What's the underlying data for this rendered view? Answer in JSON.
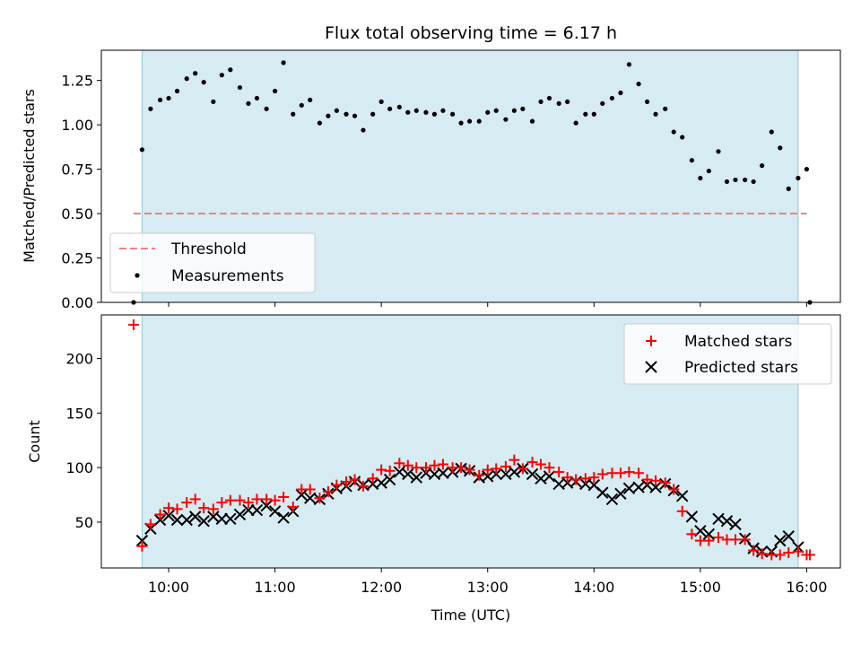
{
  "chart_data": [
    {
      "type": "scatter",
      "title": "Flux total observing time = 6.17 h",
      "ylabel": "Matched/Predicted stars",
      "ylim": [
        0,
        1.42
      ],
      "xlim_hours": [
        9.367,
        16.317
      ],
      "yticks": [
        0.0,
        0.25,
        0.5,
        0.75,
        1.0,
        1.25
      ],
      "ytick_labels": [
        "0.00",
        "0.25",
        "0.50",
        "0.75",
        "1.00",
        "1.25"
      ],
      "observing_window": [
        9.75,
        15.92
      ],
      "legend_position": "lower-left",
      "threshold": {
        "name": "Threshold",
        "value": 0.5,
        "x_range": [
          9.67,
          16.0
        ],
        "color": "#f08080"
      },
      "series": [
        {
          "name": "Measurements",
          "color": "#000000",
          "points": [
            [
              9.67,
              0.0
            ],
            [
              9.75,
              0.86
            ],
            [
              9.83,
              1.09
            ],
            [
              9.92,
              1.14
            ],
            [
              10.0,
              1.15
            ],
            [
              10.08,
              1.19
            ],
            [
              10.17,
              1.26
            ],
            [
              10.25,
              1.29
            ],
            [
              10.33,
              1.24
            ],
            [
              10.42,
              1.13
            ],
            [
              10.5,
              1.28
            ],
            [
              10.58,
              1.31
            ],
            [
              10.67,
              1.21
            ],
            [
              10.75,
              1.12
            ],
            [
              10.83,
              1.15
            ],
            [
              10.92,
              1.09
            ],
            [
              11.0,
              1.19
            ],
            [
              11.08,
              1.35
            ],
            [
              11.17,
              1.06
            ],
            [
              11.25,
              1.11
            ],
            [
              11.33,
              1.14
            ],
            [
              11.42,
              1.01
            ],
            [
              11.5,
              1.05
            ],
            [
              11.58,
              1.08
            ],
            [
              11.67,
              1.06
            ],
            [
              11.75,
              1.05
            ],
            [
              11.83,
              0.97
            ],
            [
              11.92,
              1.06
            ],
            [
              12.0,
              1.13
            ],
            [
              12.08,
              1.09
            ],
            [
              12.17,
              1.1
            ],
            [
              12.25,
              1.07
            ],
            [
              12.33,
              1.08
            ],
            [
              12.42,
              1.07
            ],
            [
              12.5,
              1.06
            ],
            [
              12.58,
              1.08
            ],
            [
              12.67,
              1.06
            ],
            [
              12.75,
              1.01
            ],
            [
              12.83,
              1.02
            ],
            [
              12.92,
              1.02
            ],
            [
              13.0,
              1.07
            ],
            [
              13.08,
              1.08
            ],
            [
              13.17,
              1.03
            ],
            [
              13.25,
              1.08
            ],
            [
              13.33,
              1.09
            ],
            [
              13.42,
              1.02
            ],
            [
              13.5,
              1.13
            ],
            [
              13.58,
              1.15
            ],
            [
              13.67,
              1.12
            ],
            [
              13.75,
              1.13
            ],
            [
              13.83,
              1.01
            ],
            [
              13.92,
              1.06
            ],
            [
              14.0,
              1.06
            ],
            [
              14.08,
              1.12
            ],
            [
              14.17,
              1.15
            ],
            [
              14.25,
              1.18
            ],
            [
              14.33,
              1.34
            ],
            [
              14.42,
              1.23
            ],
            [
              14.5,
              1.13
            ],
            [
              14.58,
              1.06
            ],
            [
              14.67,
              1.09
            ],
            [
              14.75,
              0.96
            ],
            [
              14.83,
              0.93
            ],
            [
              14.92,
              0.8
            ],
            [
              15.0,
              0.7
            ],
            [
              15.08,
              0.74
            ],
            [
              15.17,
              0.85
            ],
            [
              15.25,
              0.68
            ],
            [
              15.33,
              0.69
            ],
            [
              15.42,
              0.69
            ],
            [
              15.5,
              0.68
            ],
            [
              15.58,
              0.77
            ],
            [
              15.67,
              0.96
            ],
            [
              15.75,
              0.87
            ],
            [
              15.83,
              0.64
            ],
            [
              15.92,
              0.7
            ],
            [
              16.0,
              0.75
            ],
            [
              16.03,
              0.0
            ]
          ]
        }
      ]
    },
    {
      "type": "scatter",
      "ylabel": "Count",
      "xlabel": "Time (UTC)",
      "ylim": [
        8,
        240
      ],
      "xlim_hours": [
        9.367,
        16.317
      ],
      "yticks": [
        50,
        100,
        150,
        200
      ],
      "ytick_labels": [
        "50",
        "100",
        "150",
        "200"
      ],
      "xticks_hours": [
        10,
        11,
        12,
        13,
        14,
        15,
        16
      ],
      "xtick_labels": [
        "10:00",
        "11:00",
        "12:00",
        "13:00",
        "14:00",
        "15:00",
        "16:00"
      ],
      "observing_window": [
        9.75,
        15.92
      ],
      "legend_position": "top-right",
      "series": [
        {
          "name": "Matched stars",
          "color": "#ff0000",
          "marker": "plus",
          "points": [
            [
              9.67,
              231
            ],
            [
              9.75,
              28
            ],
            [
              9.83,
              48
            ],
            [
              9.92,
              57
            ],
            [
              10.0,
              63
            ],
            [
              10.08,
              62
            ],
            [
              10.17,
              68
            ],
            [
              10.25,
              71
            ],
            [
              10.33,
              63
            ],
            [
              10.42,
              62
            ],
            [
              10.5,
              68
            ],
            [
              10.58,
              70
            ],
            [
              10.67,
              70
            ],
            [
              10.75,
              68
            ],
            [
              10.83,
              71
            ],
            [
              10.92,
              71
            ],
            [
              11.0,
              70
            ],
            [
              11.08,
              73
            ],
            [
              11.17,
              64
            ],
            [
              11.25,
              80
            ],
            [
              11.33,
              80
            ],
            [
              11.42,
              72
            ],
            [
              11.5,
              78
            ],
            [
              11.58,
              84
            ],
            [
              11.67,
              87
            ],
            [
              11.75,
              89
            ],
            [
              11.83,
              83
            ],
            [
              11.92,
              90
            ],
            [
              12.0,
              98
            ],
            [
              12.08,
              97
            ],
            [
              12.17,
              104
            ],
            [
              12.25,
              102
            ],
            [
              12.33,
              100
            ],
            [
              12.42,
              100
            ],
            [
              12.5,
              102
            ],
            [
              12.58,
              103
            ],
            [
              12.67,
              100
            ],
            [
              12.75,
              100
            ],
            [
              12.83,
              98
            ],
            [
              12.92,
              93
            ],
            [
              13.0,
              98
            ],
            [
              13.08,
              99
            ],
            [
              13.17,
              101
            ],
            [
              13.25,
              107
            ],
            [
              13.33,
              99
            ],
            [
              13.42,
              105
            ],
            [
              13.5,
              103
            ],
            [
              13.58,
              100
            ],
            [
              13.67,
              96
            ],
            [
              13.75,
              91
            ],
            [
              13.83,
              89
            ],
            [
              13.92,
              90
            ],
            [
              14.0,
              91
            ],
            [
              14.08,
              94
            ],
            [
              14.17,
              95
            ],
            [
              14.25,
              95
            ],
            [
              14.33,
              96
            ],
            [
              14.42,
              95
            ],
            [
              14.5,
              89
            ],
            [
              14.58,
              88
            ],
            [
              14.67,
              86
            ],
            [
              14.75,
              80
            ],
            [
              14.83,
              60
            ],
            [
              14.92,
              39
            ],
            [
              15.0,
              33
            ],
            [
              15.08,
              33
            ],
            [
              15.17,
              36
            ],
            [
              15.25,
              34
            ],
            [
              15.33,
              34
            ],
            [
              15.42,
              34
            ],
            [
              15.5,
              24
            ],
            [
              15.58,
              21
            ],
            [
              15.67,
              20
            ],
            [
              15.75,
              20
            ],
            [
              15.83,
              22
            ],
            [
              15.92,
              23
            ],
            [
              16.0,
              20
            ],
            [
              16.03,
              20
            ]
          ]
        },
        {
          "name": "Predicted stars",
          "color": "#000000",
          "marker": "x",
          "points": [
            [
              9.75,
              33
            ],
            [
              9.83,
              44
            ],
            [
              9.92,
              52
            ],
            [
              10.0,
              56
            ],
            [
              10.08,
              52
            ],
            [
              10.17,
              52
            ],
            [
              10.25,
              55
            ],
            [
              10.33,
              51
            ],
            [
              10.42,
              55
            ],
            [
              10.5,
              53
            ],
            [
              10.58,
              53
            ],
            [
              10.67,
              57
            ],
            [
              10.75,
              61
            ],
            [
              10.83,
              61
            ],
            [
              10.92,
              65
            ],
            [
              11.0,
              60
            ],
            [
              11.08,
              54
            ],
            [
              11.17,
              60
            ],
            [
              11.25,
              75
            ],
            [
              11.33,
              72
            ],
            [
              11.42,
              71
            ],
            [
              11.5,
              76
            ],
            [
              11.58,
              81
            ],
            [
              11.67,
              83
            ],
            [
              11.75,
              87
            ],
            [
              11.83,
              84
            ],
            [
              11.92,
              85
            ],
            [
              12.0,
              86
            ],
            [
              12.08,
              89
            ],
            [
              12.17,
              96
            ],
            [
              12.25,
              94
            ],
            [
              12.33,
              91
            ],
            [
              12.42,
              95
            ],
            [
              12.5,
              94
            ],
            [
              12.58,
              95
            ],
            [
              12.67,
              96
            ],
            [
              12.75,
              99
            ],
            [
              12.83,
              97
            ],
            [
              12.92,
              91
            ],
            [
              13.0,
              92
            ],
            [
              13.08,
              94
            ],
            [
              13.17,
              94
            ],
            [
              13.25,
              96
            ],
            [
              13.33,
              99
            ],
            [
              13.42,
              94
            ],
            [
              13.5,
              90
            ],
            [
              13.58,
              92
            ],
            [
              13.67,
              85
            ],
            [
              13.75,
              86
            ],
            [
              13.83,
              87
            ],
            [
              13.92,
              85
            ],
            [
              14.0,
              84
            ],
            [
              14.08,
              77
            ],
            [
              14.17,
              71
            ],
            [
              14.25,
              76
            ],
            [
              14.33,
              81
            ],
            [
              14.42,
              82
            ],
            [
              14.5,
              84
            ],
            [
              14.58,
              82
            ],
            [
              14.67,
              85
            ],
            [
              14.75,
              79
            ],
            [
              14.83,
              74
            ],
            [
              14.92,
              55
            ],
            [
              15.0,
              42
            ],
            [
              15.08,
              39
            ],
            [
              15.17,
              53
            ],
            [
              15.25,
              51
            ],
            [
              15.33,
              48
            ],
            [
              15.42,
              35
            ],
            [
              15.5,
              26
            ],
            [
              15.58,
              23
            ],
            [
              15.67,
              23
            ],
            [
              15.75,
              33
            ],
            [
              15.83,
              37
            ],
            [
              15.92,
              27
            ]
          ]
        }
      ]
    }
  ]
}
